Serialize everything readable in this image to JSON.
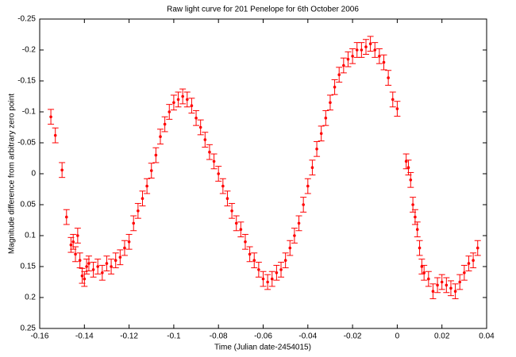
{
  "chart_data": {
    "type": "errorbar",
    "title": "Raw light curve for 201 Penelope for 6th October 2006",
    "xlabel": "Time (Julian date-2454015)",
    "ylabel": "Magnitude difference from arbitrary zero point",
    "color": "#ff0000",
    "y_inverted": true,
    "xlim": [
      -0.16,
      0.04
    ],
    "xticks": [
      -0.16,
      -0.14,
      -0.12,
      -0.1,
      -0.08,
      -0.06,
      -0.04,
      -0.02,
      0,
      0.02,
      0.04
    ],
    "ylim": [
      -0.25,
      0.25
    ],
    "yticks": [
      -0.25,
      -0.2,
      -0.15,
      -0.1,
      -0.05,
      0,
      0.05,
      0.1,
      0.15,
      0.2,
      0.25
    ],
    "x": [
      -0.155,
      -0.153,
      -0.15,
      -0.148,
      -0.146,
      -0.145,
      -0.144,
      -0.143,
      -0.142,
      -0.141,
      -0.14,
      -0.139,
      -0.138,
      -0.136,
      -0.134,
      -0.132,
      -0.13,
      -0.128,
      -0.126,
      -0.124,
      -0.122,
      -0.12,
      -0.118,
      -0.116,
      -0.114,
      -0.112,
      -0.11,
      -0.108,
      -0.106,
      -0.104,
      -0.102,
      -0.1,
      -0.098,
      -0.096,
      -0.094,
      -0.092,
      -0.09,
      -0.088,
      -0.086,
      -0.084,
      -0.082,
      -0.08,
      -0.078,
      -0.076,
      -0.074,
      -0.072,
      -0.07,
      -0.068,
      -0.066,
      -0.064,
      -0.062,
      -0.06,
      -0.058,
      -0.056,
      -0.054,
      -0.052,
      -0.05,
      -0.048,
      -0.046,
      -0.044,
      -0.042,
      -0.04,
      -0.038,
      -0.036,
      -0.034,
      -0.032,
      -0.03,
      -0.028,
      -0.026,
      -0.024,
      -0.022,
      -0.02,
      -0.018,
      -0.016,
      -0.014,
      -0.012,
      -0.01,
      -0.008,
      -0.006,
      -0.004,
      -0.002,
      0,
      0.004,
      0.005,
      0.006,
      0.007,
      0.008,
      0.009,
      0.01,
      0.011,
      0.012,
      0.014,
      0.016,
      0.018,
      0.02,
      0.022,
      0.024,
      0.026,
      0.028,
      0.03,
      0.032,
      0.034,
      0.036
    ],
    "values": [
      -0.092,
      -0.062,
      -0.006,
      0.07,
      0.115,
      0.11,
      0.13,
      0.1,
      0.14,
      0.165,
      0.17,
      0.15,
      0.145,
      0.155,
      0.15,
      0.16,
      0.145,
      0.15,
      0.14,
      0.135,
      0.12,
      0.11,
      0.08,
      0.06,
      0.04,
      0.02,
      -0.005,
      -0.03,
      -0.06,
      -0.08,
      -0.1,
      -0.115,
      -0.12,
      -0.125,
      -0.12,
      -0.11,
      -0.09,
      -0.075,
      -0.055,
      -0.035,
      -0.02,
      0,
      0.02,
      0.04,
      0.06,
      0.08,
      0.09,
      0.11,
      0.13,
      0.14,
      0.155,
      0.17,
      0.175,
      0.17,
      0.16,
      0.155,
      0.14,
      0.12,
      0.1,
      0.08,
      0.05,
      0.02,
      -0.01,
      -0.04,
      -0.065,
      -0.09,
      -0.115,
      -0.14,
      -0.16,
      -0.175,
      -0.185,
      -0.19,
      -0.2,
      -0.2,
      -0.205,
      -0.21,
      -0.2,
      -0.19,
      -0.18,
      -0.155,
      -0.12,
      -0.105,
      -0.02,
      -0.01,
      0.01,
      0.05,
      0.07,
      0.09,
      0.12,
      0.15,
      0.16,
      0.17,
      0.19,
      0.18,
      0.175,
      0.18,
      0.185,
      0.19,
      0.175,
      0.16,
      0.145,
      0.14,
      0.12
    ],
    "errors": [
      0.012,
      0.012,
      0.012,
      0.012,
      0.012,
      0.012,
      0.012,
      0.012,
      0.012,
      0.012,
      0.012,
      0.012,
      0.012,
      0.012,
      0.012,
      0.012,
      0.012,
      0.012,
      0.012,
      0.012,
      0.012,
      0.012,
      0.012,
      0.012,
      0.012,
      0.012,
      0.012,
      0.012,
      0.012,
      0.012,
      0.012,
      0.012,
      0.012,
      0.012,
      0.012,
      0.012,
      0.012,
      0.012,
      0.012,
      0.012,
      0.012,
      0.012,
      0.012,
      0.012,
      0.012,
      0.012,
      0.012,
      0.012,
      0.012,
      0.012,
      0.012,
      0.012,
      0.012,
      0.012,
      0.012,
      0.012,
      0.012,
      0.012,
      0.012,
      0.012,
      0.012,
      0.012,
      0.012,
      0.012,
      0.012,
      0.012,
      0.012,
      0.012,
      0.012,
      0.012,
      0.012,
      0.012,
      0.012,
      0.012,
      0.012,
      0.012,
      0.012,
      0.012,
      0.012,
      0.012,
      0.012,
      0.012,
      0.012,
      0.012,
      0.012,
      0.012,
      0.012,
      0.012,
      0.012,
      0.012,
      0.012,
      0.012,
      0.012,
      0.012,
      0.012,
      0.012,
      0.012,
      0.012,
      0.012,
      0.012,
      0.012,
      0.012,
      0.012
    ]
  }
}
